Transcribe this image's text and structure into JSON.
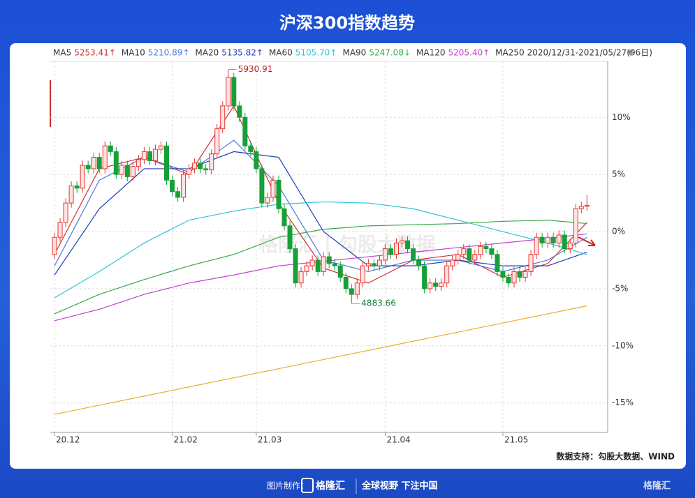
{
  "chart_data": {
    "type": "candlestick",
    "title": "沪深300指数趋势",
    "date_range": "2020/12/31-2021/05/27(96日)",
    "source": "数据支持：勾股大数据、WIND",
    "footer": {
      "made_by": "图片制作：",
      "brand": "格隆汇",
      "slogan": "全球视野 下注中国"
    },
    "watermark": "格隆汇 | 勾股大数据",
    "annotations": [
      {
        "text": "5930.91"
      },
      {
        "text": "4883.66"
      }
    ],
    "xlim": [
      -0.75,
      98.7
    ],
    "ylim": [
      -17.4,
      14.9
    ],
    "xticks": [
      {
        "value": 0,
        "label": "20.12"
      },
      {
        "value": 21,
        "label": "21.02"
      },
      {
        "value": 36,
        "label": "21.03"
      },
      {
        "value": 59,
        "label": "21.04"
      },
      {
        "value": 80,
        "label": "21.05"
      }
    ],
    "yticks": [
      {
        "value": 10,
        "label": "10%"
      },
      {
        "value": 5,
        "label": "5%"
      },
      {
        "value": 0,
        "label": "0%"
      },
      {
        "value": -5,
        "label": "-5%"
      },
      {
        "value": -10,
        "label": "-10%"
      },
      {
        "value": -15,
        "label": "-15%"
      }
    ],
    "grid": true,
    "up_color": "#e8352f",
    "down_color": "#16a038",
    "open": [
      -2.0,
      -0.5,
      0.8,
      2.5,
      4.0,
      3.8,
      5.8,
      5.5,
      6.5,
      5.5,
      7.5,
      7.0,
      5.0,
      5.8,
      4.8,
      5.7,
      6.3,
      7.0,
      6.2,
      7.2,
      7.5,
      4.5,
      3.5,
      3.0,
      5.0,
      5.5,
      6.0,
      5.5,
      5.4,
      6.8,
      9.0,
      11.0,
      13.5,
      11.0,
      10.0,
      7.5,
      7.0,
      5.5,
      2.5,
      3.0,
      4.5,
      2.0,
      0.5,
      -1.5,
      -4.5,
      -3.5,
      -3.0,
      -2.5,
      -3.5,
      -2.2,
      -2.8,
      -3.0,
      -4.0,
      -5.0,
      -5.5,
      -4.5,
      -3.0,
      -2.8,
      -3.0,
      -2.5,
      -1.5,
      -2.0,
      -1.0,
      -0.8,
      -1.5,
      -2.5,
      -3.0,
      -5.0,
      -4.5,
      -4.8,
      -4.5,
      -3.0,
      -2.5,
      -2.0,
      -1.5,
      -2.5,
      -2.0,
      -1.3,
      -1.5,
      -2.0,
      -3.5,
      -4.0,
      -4.5,
      -3.5,
      -4.0,
      -3.5,
      -2.0,
      -0.5,
      -1.0,
      -0.5,
      -1.0,
      -0.3,
      -1.5,
      -1.0,
      2.0,
      2.2
    ],
    "high": [
      -0.1,
      1.2,
      2.9,
      4.4,
      4.4,
      6.2,
      6.2,
      6.9,
      6.9,
      7.9,
      7.9,
      7.4,
      6.2,
      6.2,
      6.1,
      6.7,
      7.4,
      7.4,
      7.6,
      7.9,
      7.9,
      4.9,
      3.9,
      5.4,
      5.9,
      6.4,
      6.4,
      5.9,
      7.2,
      9.4,
      11.4,
      14.2,
      13.9,
      11.4,
      10.4,
      7.9,
      7.4,
      5.9,
      3.4,
      4.9,
      4.9,
      2.4,
      0.9,
      -1.1,
      -3.1,
      -2.6,
      -2.1,
      -2.1,
      -1.8,
      -1.8,
      -2.4,
      -2.6,
      -3.6,
      -4.6,
      -4.1,
      -2.6,
      -2.4,
      -2.4,
      -2.1,
      -1.1,
      -1.1,
      -0.6,
      -0.4,
      -0.4,
      -1.1,
      -2.1,
      -2.6,
      -4.1,
      -4.1,
      -4.1,
      -2.6,
      -2.1,
      -1.6,
      -1.1,
      -1.1,
      -1.6,
      -0.9,
      -0.9,
      -1.1,
      -1.6,
      -3.1,
      -3.6,
      -3.1,
      -3.1,
      -3.1,
      -1.6,
      -0.1,
      -0.1,
      -0.1,
      -0.1,
      0.1,
      0.1,
      -0.6,
      2.4,
      2.6,
      3.2
    ],
    "low": [
      -2.4,
      -0.9,
      0.4,
      2.1,
      3.4,
      3.4,
      5.1,
      5.1,
      5.1,
      5.1,
      6.6,
      4.6,
      4.6,
      4.4,
      4.4,
      5.3,
      5.9,
      5.8,
      5.8,
      6.8,
      4.1,
      3.1,
      2.6,
      2.6,
      4.6,
      5.1,
      5.1,
      5.0,
      5.0,
      6.4,
      8.6,
      10.6,
      10.6,
      9.6,
      7.1,
      6.6,
      5.1,
      2.1,
      2.1,
      2.6,
      1.6,
      0.1,
      -1.9,
      -4.9,
      -4.9,
      -3.9,
      -3.4,
      -3.9,
      -3.9,
      -3.2,
      -3.4,
      -4.4,
      -5.4,
      -6.3,
      -5.9,
      -4.9,
      -3.4,
      -3.4,
      -3.4,
      -2.9,
      -2.4,
      -2.4,
      -1.4,
      -1.9,
      -2.9,
      -3.4,
      -5.4,
      -5.4,
      -5.2,
      -5.2,
      -4.9,
      -3.4,
      -2.9,
      -2.4,
      -2.9,
      -2.9,
      -2.4,
      -1.9,
      -2.4,
      -3.9,
      -4.4,
      -4.9,
      -4.9,
      -4.4,
      -4.4,
      -3.9,
      -2.4,
      -1.4,
      -1.4,
      -1.4,
      -1.4,
      -1.9,
      -1.9,
      -1.4,
      1.6,
      1.8
    ],
    "close": [
      -0.5,
      0.8,
      2.5,
      4.0,
      3.8,
      5.8,
      5.5,
      6.5,
      5.5,
      7.5,
      7.0,
      5.0,
      5.8,
      4.8,
      5.7,
      6.3,
      7.0,
      6.2,
      7.2,
      7.5,
      4.5,
      3.5,
      3.0,
      5.0,
      5.5,
      6.0,
      5.5,
      5.4,
      6.8,
      9.0,
      11.0,
      13.5,
      11.0,
      10.0,
      7.5,
      7.0,
      5.5,
      2.5,
      3.0,
      4.5,
      2.0,
      0.5,
      -1.5,
      -4.5,
      -3.5,
      -3.0,
      -2.5,
      -3.5,
      -2.2,
      -2.8,
      -3.0,
      -4.0,
      -5.0,
      -5.5,
      -4.5,
      -3.0,
      -2.8,
      -3.0,
      -2.5,
      -1.5,
      -2.0,
      -1.0,
      -0.8,
      -1.5,
      -2.5,
      -3.0,
      -5.0,
      -4.5,
      -4.8,
      -4.5,
      -3.0,
      -2.5,
      -2.0,
      -1.5,
      -2.5,
      -2.0,
      -1.3,
      -1.5,
      -2.0,
      -3.5,
      -4.0,
      -4.5,
      -3.5,
      -4.0,
      -3.5,
      -2.0,
      -0.5,
      -1.0,
      -0.5,
      -1.0,
      -0.3,
      -1.5,
      -1.0,
      2.0,
      2.2,
      2.3
    ],
    "ma_x": [
      0,
      8,
      16,
      24,
      32,
      40,
      48,
      56,
      64,
      72,
      80,
      88,
      95
    ],
    "series": [
      {
        "name": "MA5",
        "value_label": "5253.41↑",
        "color": "#d0312d",
        "values": [
          -2,
          5.5,
          6.5,
          5.0,
          11,
          2.5,
          -3.2,
          -4.5,
          -2.5,
          -2.0,
          -4.0,
          -2.8,
          0.8
        ]
      },
      {
        "name": "MA10",
        "value_label": "5210.89↑",
        "color": "#4a7be0",
        "values": [
          -3.0,
          4.5,
          6.5,
          5.2,
          8.0,
          4.0,
          -2.5,
          -3.5,
          -2.5,
          -2.5,
          -3.5,
          -2.5,
          -0.5
        ]
      },
      {
        "name": "MA20",
        "value_label": "5135.82↑",
        "color": "#1a3cc0",
        "values": [
          -3.8,
          2.0,
          5.5,
          5.5,
          7.0,
          6.5,
          0,
          -3.0,
          -3.0,
          -2.5,
          -3.0,
          -3.0,
          -1.8
        ]
      },
      {
        "name": "MA60",
        "value_label": "5105.70↑",
        "color": "#2fc3d6",
        "values": [
          -5.8,
          -3.5,
          -1.0,
          1.0,
          1.8,
          2.4,
          2.6,
          2.5,
          2.0,
          1.0,
          0,
          -1.0,
          -2.0
        ]
      },
      {
        "name": "MA90",
        "value_label": "5247.08↓",
        "color": "#38a845",
        "values": [
          -7.2,
          -5.5,
          -4.2,
          -3.0,
          -2.0,
          -0.5,
          0.2,
          0.5,
          0.6,
          0.7,
          0.9,
          1.0,
          0.7
        ]
      },
      {
        "name": "MA120",
        "value_label": "5205.40↑",
        "color": "#c43fd0",
        "values": [
          -7.8,
          -6.8,
          -5.5,
          -4.5,
          -3.8,
          -3.0,
          -2.6,
          -2.2,
          -1.8,
          -1.4,
          -1.0,
          -0.6,
          -0.2
        ]
      },
      {
        "name": "MA250",
        "color": "#e6b02c",
        "values": [
          -16,
          -15.2,
          -14.4,
          -13.6,
          -12.8,
          -12,
          -11.2,
          -10.4,
          -9.6,
          -8.8,
          -8,
          -7.2,
          -6.5
        ]
      }
    ]
  }
}
